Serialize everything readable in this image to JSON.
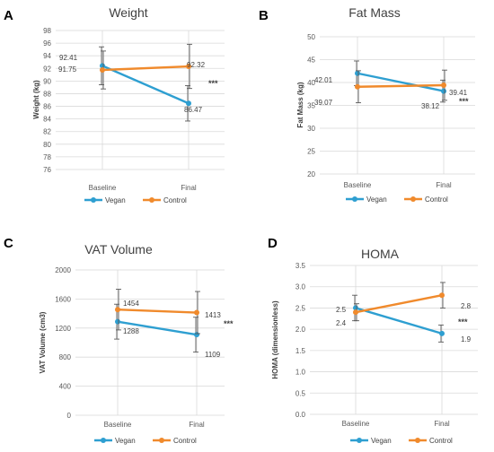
{
  "colors": {
    "vegan": "#2E9FD1",
    "control": "#F08A2C",
    "grid": "#d9d9d9",
    "error": "#595959"
  },
  "legend": {
    "vegan_label": "Vegan",
    "control_label": "Control"
  },
  "chart_data": [
    {
      "panel": "A",
      "type": "line",
      "title": "Weight",
      "ylabel": "Weight (kg)",
      "categories": [
        "Baseline",
        "Final"
      ],
      "ylim": [
        76,
        98
      ],
      "yticks": [
        76,
        78,
        80,
        82,
        84,
        86,
        88,
        90,
        92,
        94,
        96,
        98
      ],
      "grid": true,
      "legend": "bottom",
      "significance": "***",
      "series": [
        {
          "name": "Vegan",
          "color": "#2E9FD1",
          "values": [
            92.41,
            86.47
          ],
          "labels": [
            "92.41",
            "86.47"
          ],
          "errors": [
            3.0,
            2.8
          ]
        },
        {
          "name": "Control",
          "color": "#F08A2C",
          "values": [
            91.75,
            92.32
          ],
          "labels": [
            "91.75",
            "92.32"
          ],
          "errors": [
            3.0,
            3.5
          ]
        }
      ]
    },
    {
      "panel": "B",
      "type": "line",
      "title": "Fat Mass",
      "ylabel": "Fat Mass (kg)",
      "categories": [
        "Baseline",
        "Final"
      ],
      "ylim": [
        20,
        50
      ],
      "yticks": [
        20,
        25,
        30,
        35,
        40,
        45,
        50
      ],
      "grid": true,
      "legend": "bottom",
      "significance": "***",
      "series": [
        {
          "name": "Vegan",
          "color": "#2E9FD1",
          "values": [
            42.01,
            38.12
          ],
          "labels": [
            "42.01",
            "38.12"
          ],
          "errors": [
            2.7,
            2.4
          ]
        },
        {
          "name": "Control",
          "color": "#F08A2C",
          "values": [
            39.07,
            39.41
          ],
          "labels": [
            "39.07",
            "39.41"
          ],
          "errors": [
            3.5,
            3.3
          ]
        }
      ]
    },
    {
      "panel": "C",
      "type": "line",
      "title": "VAT Volume",
      "ylabel": "VAT Volume (cm3)",
      "categories": [
        "Baseline",
        "Final"
      ],
      "ylim": [
        0,
        2000
      ],
      "yticks": [
        0,
        400,
        800,
        1200,
        1600,
        2000
      ],
      "grid": true,
      "legend": "bottom",
      "significance": "***",
      "series": [
        {
          "name": "Vegan",
          "color": "#2E9FD1",
          "values": [
            1288,
            1109
          ],
          "labels": [
            "1288",
            "1109"
          ],
          "errors": [
            240,
            240
          ]
        },
        {
          "name": "Control",
          "color": "#F08A2C",
          "values": [
            1454,
            1413
          ],
          "labels": [
            "1454",
            "1413"
          ],
          "errors": [
            280,
            290
          ]
        }
      ]
    },
    {
      "panel": "D",
      "type": "line",
      "title": "HOMA",
      "ylabel": "HOMA (dimensionless)",
      "categories": [
        "Baseline",
        "Final"
      ],
      "ylim": [
        0,
        3.5
      ],
      "yticks": [
        "0.0",
        "0.5",
        "1.0",
        "1.5",
        "2.0",
        "2.5",
        "3.0",
        "3.5"
      ],
      "grid": true,
      "legend": "bottom",
      "significance": "***",
      "series": [
        {
          "name": "Vegan",
          "color": "#2E9FD1",
          "values": [
            2.5,
            1.9
          ],
          "labels": [
            "2.5",
            "1.9"
          ],
          "errors": [
            0.3,
            0.2
          ]
        },
        {
          "name": "Control",
          "color": "#F08A2C",
          "values": [
            2.4,
            2.8
          ],
          "labels": [
            "2.4",
            "2.8"
          ],
          "errors": [
            0.2,
            0.3
          ]
        }
      ]
    }
  ]
}
